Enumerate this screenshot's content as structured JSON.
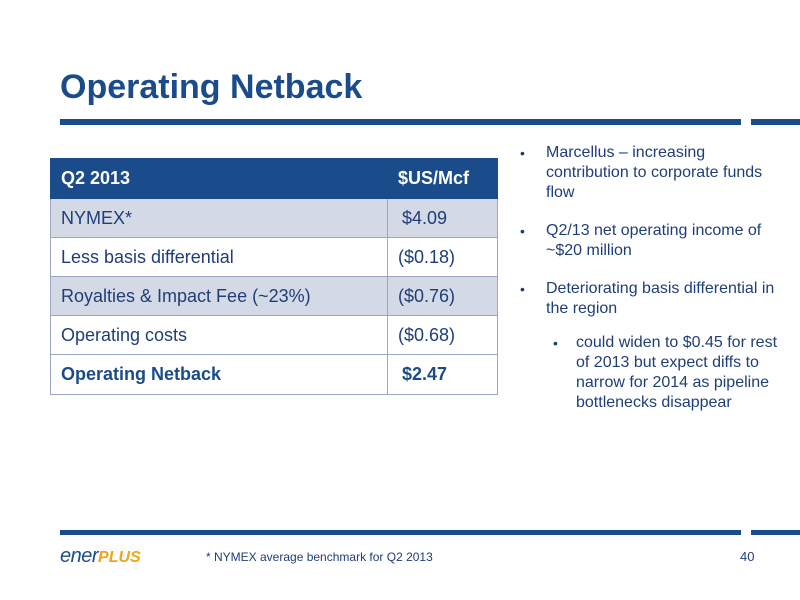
{
  "slide": {
    "title": "Operating Netback",
    "footnote": "* NYMEX average benchmark for Q2 2013",
    "page_number": "40",
    "logo": {
      "part1": "ener",
      "part2": "PLUS",
      "colors": {
        "text": "#1a4c8b",
        "accent": "#f2a417"
      }
    }
  },
  "table": {
    "header": [
      "Q2 2013",
      "$US/Mcf"
    ],
    "rows": [
      {
        "label": "NYMEX*",
        "value": "$4.09"
      },
      {
        "label": "Less basis differential",
        "value": "($0.18)"
      },
      {
        "label": "Royalties & Impact Fee (~23%)",
        "value": "($0.76)"
      },
      {
        "label": "Operating costs",
        "value": "($0.68)"
      }
    ],
    "total": {
      "label": "Operating Netback",
      "value": "$2.47"
    }
  },
  "bullets": [
    "Marcellus – increasing contribution to corporate funds flow",
    "Q2/13 net operating income of ~$20 million",
    "Deteriorating basis differential in the region"
  ],
  "sub_bullet": "could widen to $0.45 for rest of 2013 but expect diffs to narrow for 2014 as pipeline bottlenecks disappear",
  "colors": {
    "primary": "#1a4c8b",
    "row_shade": "#d4d9e6",
    "text": "#1f3e79"
  }
}
